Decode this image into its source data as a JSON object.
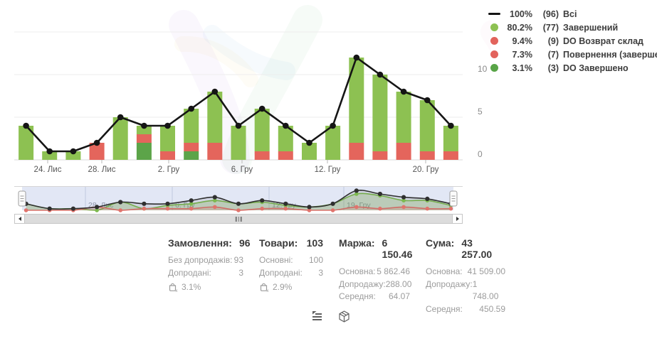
{
  "legend": {
    "items": [
      {
        "marker": "line",
        "color": "#141414",
        "percent": "100%",
        "count": "(96)",
        "label": "Всі"
      },
      {
        "marker": "dot",
        "color": "#8dc152",
        "percent": "80.2%",
        "count": "(77)",
        "label": "Завершений"
      },
      {
        "marker": "dot",
        "color": "#e2635c",
        "percent": "9.4%",
        "count": "(9)",
        "label": "DO Возврат склад"
      },
      {
        "marker": "dot",
        "color": "#e2635c",
        "percent": "7.3%",
        "count": "(7)",
        "label": "Повернення (завершений)"
      },
      {
        "marker": "dot",
        "color": "#58a447",
        "percent": "3.1%",
        "count": "(3)",
        "label": "DO Завершено"
      }
    ]
  },
  "chart_data": {
    "type": "bar",
    "stacked": true,
    "title": "",
    "xlabel": "",
    "ylabel": "",
    "ylim": [
      0,
      15
    ],
    "y_ticks": [
      0,
      5,
      10
    ],
    "grid": true,
    "legend_position": "top-right",
    "series": [
      {
        "name": "DO Завершено",
        "color": "#5ca449",
        "values": [
          0,
          0,
          0,
          0,
          0,
          2,
          0,
          1,
          0,
          0,
          0,
          0,
          0,
          0,
          0,
          0,
          0,
          0,
          0
        ]
      },
      {
        "name": "DO Возврат склад / Повернення (завершений)",
        "color": "#e4655c",
        "values": [
          0,
          0,
          0,
          2,
          0,
          1,
          1,
          1,
          2,
          0,
          1,
          1,
          0,
          0,
          2,
          1,
          2,
          1,
          1
        ]
      },
      {
        "name": "Завершений",
        "color": "#8dc152",
        "values": [
          4,
          1,
          1,
          0,
          5,
          1,
          3,
          4,
          6,
          4,
          5,
          3,
          2,
          4,
          10,
          9,
          6,
          6,
          3
        ]
      }
    ],
    "line": {
      "name": "Всі",
      "color": "#151515",
      "values": [
        4,
        1,
        1,
        2,
        5,
        4,
        4,
        6,
        8,
        4,
        6,
        4,
        2,
        4,
        12,
        10,
        8,
        7,
        4
      ]
    },
    "x_ticks": [
      {
        "label": "24. Лис",
        "x": 67
      },
      {
        "label": "28. Лис",
        "x": 143
      },
      {
        "label": "2. Гру",
        "x": 237
      },
      {
        "label": "6. Гру",
        "x": 340
      },
      {
        "label": "12. Гру",
        "x": 460
      },
      {
        "label": "20. Гру",
        "x": 598
      }
    ]
  },
  "navigator": {
    "labels": [
      {
        "label": "28. Лис",
        "x": 120
      },
      {
        "label": "6. Гру",
        "x": 242
      },
      {
        "label": "12. Гру",
        "x": 378
      },
      {
        "label": "19. Гру",
        "x": 483
      }
    ],
    "series": [
      {
        "name": "Завершений",
        "color": "#7cb94e",
        "fill": "rgba(141,193,82,0.28)",
        "values": [
          4,
          1,
          1,
          0,
          5,
          1,
          3,
          4,
          6,
          4,
          5,
          3,
          2,
          4,
          10,
          9,
          6,
          6,
          3
        ]
      },
      {
        "name": "Повернення",
        "color": "#e0736c",
        "fill": "rgba(228,101,92,0.20)",
        "values": [
          0,
          0,
          0,
          2,
          0,
          1,
          1,
          1,
          2,
          0,
          1,
          1,
          0,
          0,
          2,
          1,
          2,
          1,
          1
        ]
      },
      {
        "name": "Всі",
        "color": "#2f2f2f",
        "fill": "rgba(60,60,60,0.10)",
        "values": [
          4,
          1,
          1,
          2,
          5,
          4,
          4,
          6,
          8,
          4,
          6,
          4,
          2,
          4,
          12,
          10,
          8,
          7,
          4
        ]
      }
    ]
  },
  "stats": [
    {
      "title": "Замовлення:",
      "value": "96",
      "rows": [
        {
          "label": "Без допродажів:",
          "value": "93"
        },
        {
          "label": "Допродані:",
          "value": "3"
        }
      ],
      "basket_percent": "3.1%"
    },
    {
      "title": "Товари:",
      "value": "103",
      "rows": [
        {
          "label": "Основні:",
          "value": "100"
        },
        {
          "label": "Допродані:",
          "value": "3"
        }
      ],
      "basket_percent": "2.9%"
    },
    {
      "title": "Маржа:",
      "value": "6 150.46",
      "rows": [
        {
          "label": "Основна:",
          "value": "5 862.46"
        },
        {
          "label": "Допродажу:",
          "value": "288.00"
        },
        {
          "label": "Середня:",
          "value": "64.07"
        }
      ]
    },
    {
      "title": "Сума:",
      "value": "43 257.00",
      "rows": [
        {
          "label": "Основна:",
          "value": "41 509.00"
        },
        {
          "label": "Допродажу:",
          "value": "1 748.00"
        },
        {
          "label": "Середня:",
          "value": "450.59"
        }
      ]
    }
  ],
  "footer": {
    "icons": [
      "details-list",
      "package"
    ]
  }
}
